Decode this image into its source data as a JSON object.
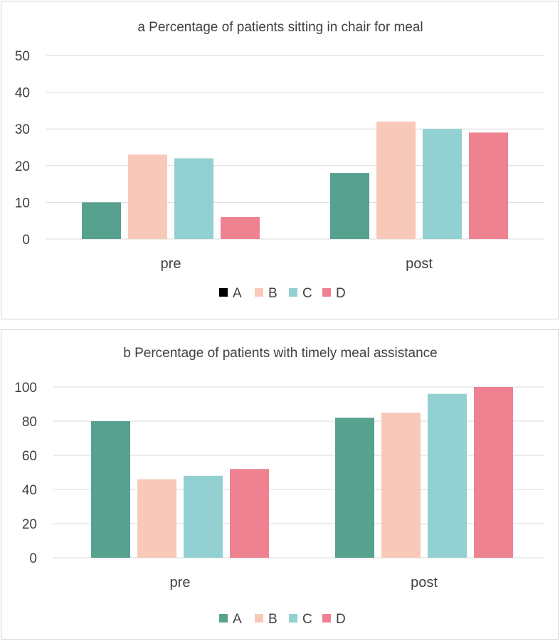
{
  "chart_data": [
    {
      "type": "bar",
      "title": "a Percentage of patients sitting in chair for meal",
      "categories": [
        "pre",
        "post"
      ],
      "series": [
        {
          "name": "A",
          "values": [
            10,
            18
          ],
          "color": "#57a18f"
        },
        {
          "name": "B",
          "values": [
            23,
            32
          ],
          "color": "#f8c9b9"
        },
        {
          "name": "C",
          "values": [
            22,
            30
          ],
          "color": "#93d0d2"
        },
        {
          "name": "D",
          "values": [
            6,
            29
          ],
          "color": "#ee8291"
        }
      ],
      "legend_swatch_colors": [
        "#000000",
        "#f8c9b9",
        "#93d0d2",
        "#ee8291"
      ],
      "ylim": [
        0,
        50
      ],
      "yticks": [
        0,
        10,
        20,
        30,
        40,
        50
      ],
      "xlabel": "",
      "ylabel": "",
      "grid": true,
      "legend_position": "bottom"
    },
    {
      "type": "bar",
      "title": "b Percentage of patients with timely meal assistance",
      "categories": [
        "pre",
        "post"
      ],
      "series": [
        {
          "name": "A",
          "values": [
            80,
            82
          ],
          "color": "#57a18f"
        },
        {
          "name": "B",
          "values": [
            46,
            85
          ],
          "color": "#f8c9b9"
        },
        {
          "name": "C",
          "values": [
            48,
            96
          ],
          "color": "#93d0d2"
        },
        {
          "name": "D",
          "values": [
            52,
            100
          ],
          "color": "#ee8291"
        }
      ],
      "legend_swatch_colors": [
        "#57a18f",
        "#f8c9b9",
        "#93d0d2",
        "#ee8291"
      ],
      "ylim": [
        0,
        100
      ],
      "yticks": [
        0,
        20,
        40,
        60,
        80,
        100
      ],
      "xlabel": "",
      "ylabel": "",
      "grid": true,
      "legend_position": "bottom"
    }
  ]
}
